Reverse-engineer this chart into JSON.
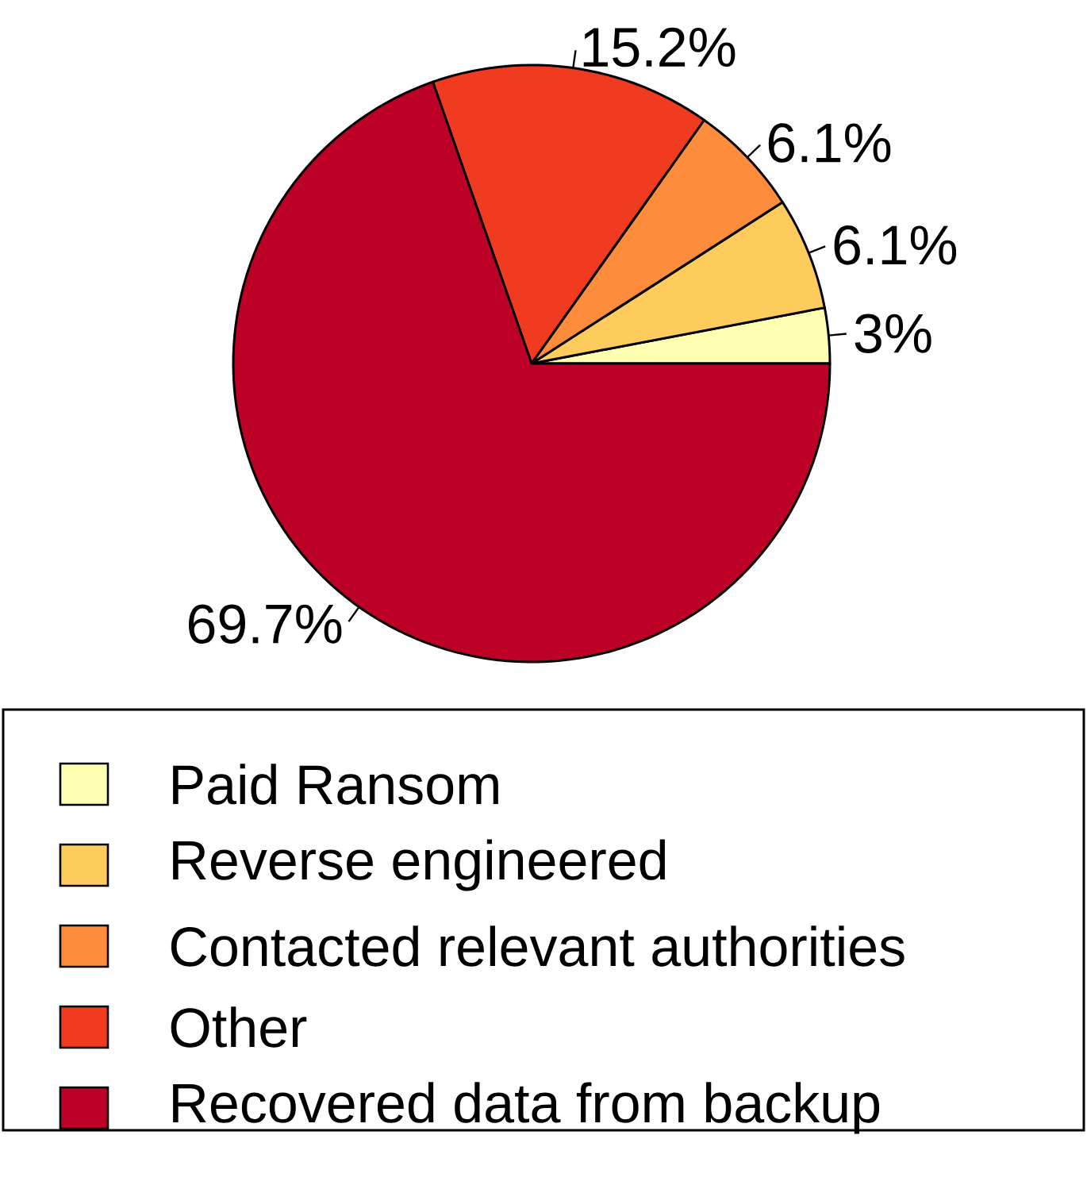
{
  "chart_data": {
    "type": "pie",
    "categories": [
      "Paid Ransom",
      "Reverse engineered",
      "Contacted relevant authorities",
      "Other",
      "Recovered data from backup"
    ],
    "values": [
      3,
      6.1,
      6.1,
      15.2,
      69.7
    ],
    "value_labels": [
      "3%",
      "6.1%",
      "6.1%",
      "15.2%",
      "69.7%"
    ],
    "colors": [
      "#ffffb2",
      "#fecc5c",
      "#fd8d3c",
      "#f03b20",
      "#bd0026"
    ],
    "legend": "bottom"
  }
}
